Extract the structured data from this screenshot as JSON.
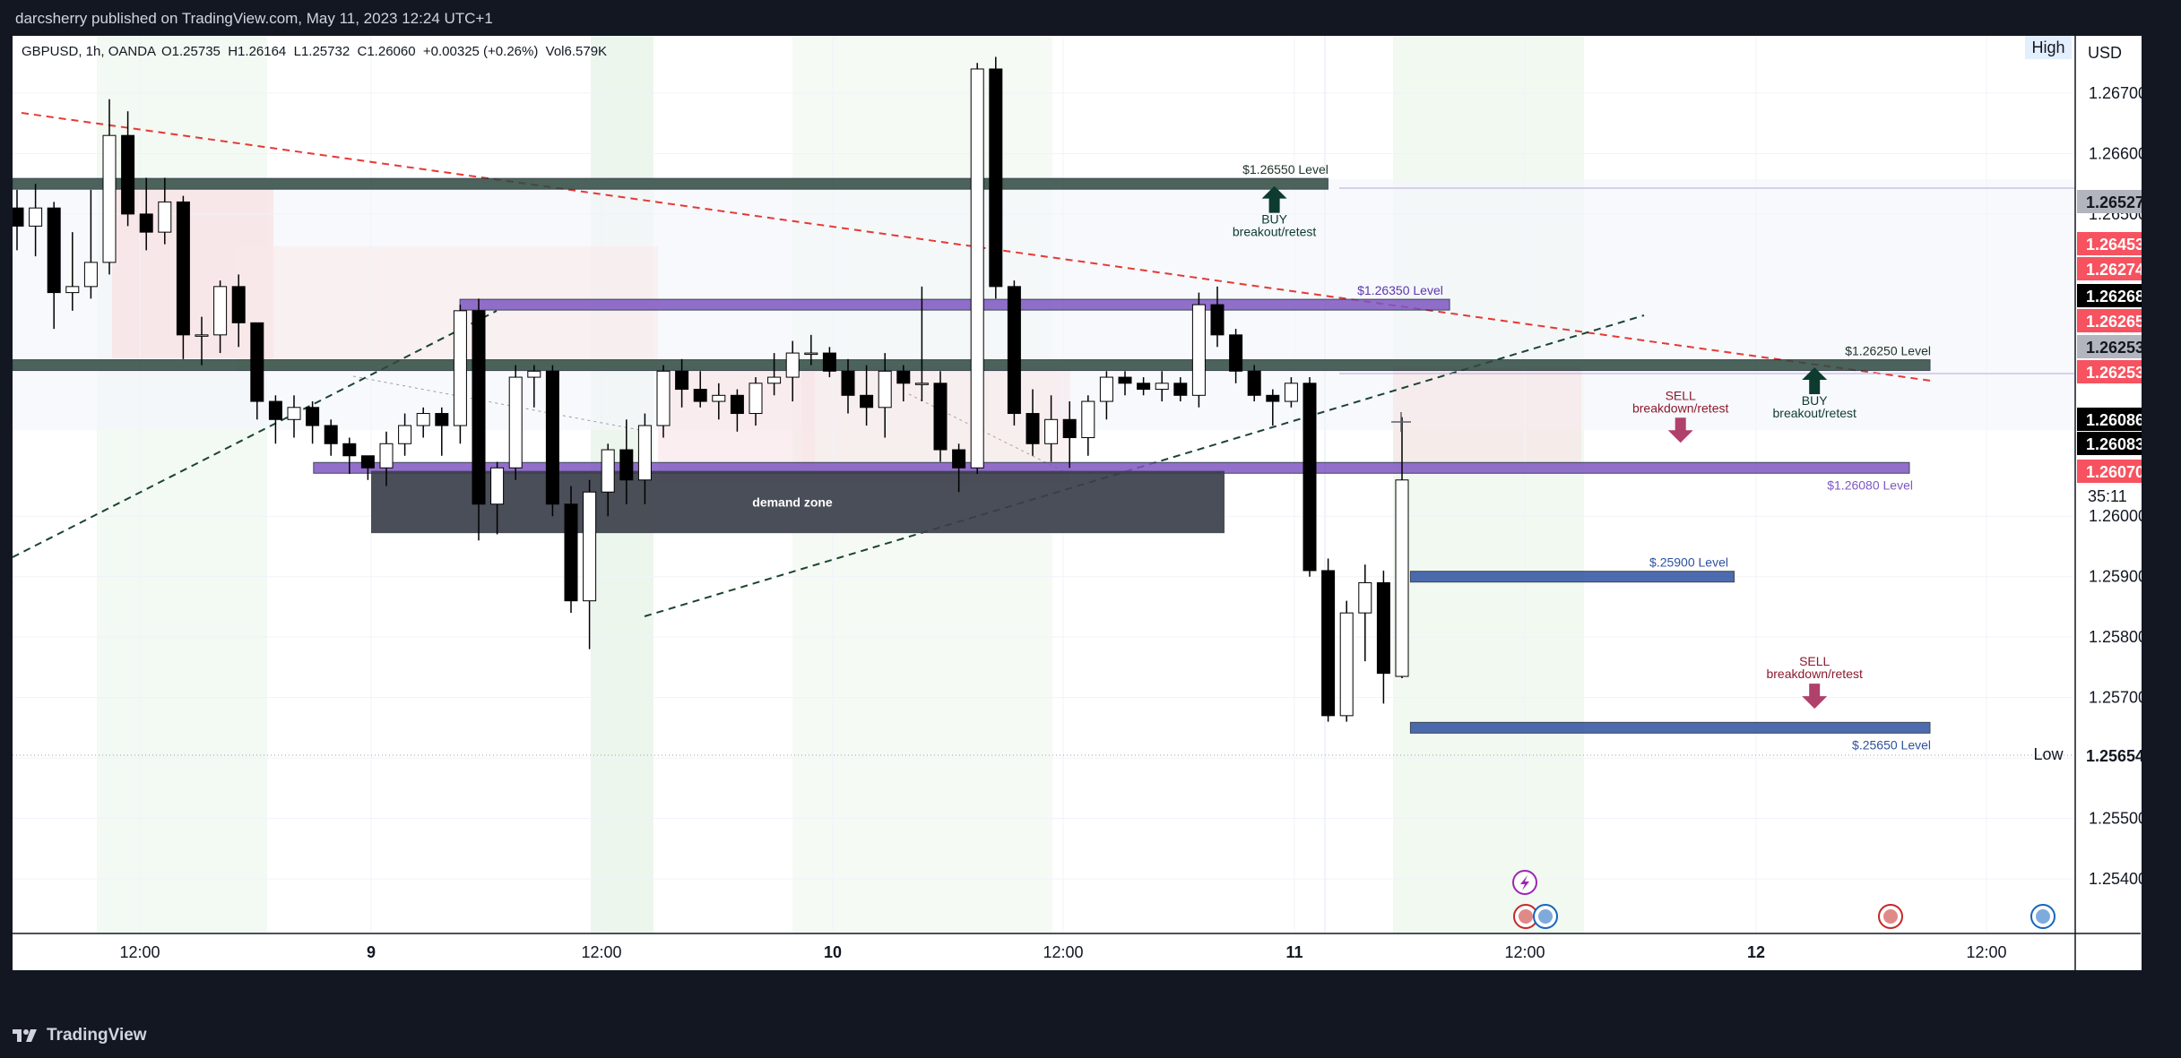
{
  "header": {
    "published_text": "darcsherry published on TradingView.com, May 11, 2023 12:24 UTC+1"
  },
  "footer": {
    "brand_label": "TradingView"
  },
  "legend": {
    "symbol_info": "GBPUSD, 1h, OANDA",
    "ohlc": "O1.25735  H1.26164  L1.25732  C1.26060  +0.00325 (+0.26%)  Vol6.579K"
  },
  "colors": {
    "up_candle": "#ffffff",
    "down_candle": "#000000",
    "level_green": "#2e4a3f",
    "level_purple": "#7e57c2",
    "level_blue": "#2e52a0",
    "trendline_red": "#e53935",
    "trendline_green": "#1b4332",
    "price_red": "#f7525f",
    "price_grey": "#b2b5be"
  },
  "chart_data": {
    "type": "candlestick",
    "symbol": "GBPUSD",
    "timeframe": "1h",
    "currency": "USD",
    "ylim": [
      1.2532,
      1.2678
    ],
    "y_ticks": [
      "1.26700",
      "1.26600",
      "1.26500",
      "1.26000",
      "1.25900",
      "1.25800",
      "1.25700",
      "1.25600",
      "1.25500",
      "1.25400"
    ],
    "x_ticks": [
      "12:00",
      "9",
      "12:00",
      "10",
      "12:00",
      "11",
      "12:00",
      "12",
      "12:00"
    ],
    "candles": [
      {
        "o": 1.2651,
        "h": 1.2654,
        "l": 1.2644,
        "c": 1.2648
      },
      {
        "o": 1.2648,
        "h": 1.2655,
        "l": 1.2643,
        "c": 1.2651
      },
      {
        "o": 1.2651,
        "h": 1.2652,
        "l": 1.2631,
        "c": 1.2637
      },
      {
        "o": 1.2637,
        "h": 1.2647,
        "l": 1.2634,
        "c": 1.2638
      },
      {
        "o": 1.2638,
        "h": 1.2654,
        "l": 1.2636,
        "c": 1.2642
      },
      {
        "o": 1.2642,
        "h": 1.2669,
        "l": 1.264,
        "c": 1.2663
      },
      {
        "o": 1.2663,
        "h": 1.2667,
        "l": 1.2648,
        "c": 1.265
      },
      {
        "o": 1.265,
        "h": 1.2656,
        "l": 1.2644,
        "c": 1.2647
      },
      {
        "o": 1.2647,
        "h": 1.2656,
        "l": 1.2645,
        "c": 1.2652
      },
      {
        "o": 1.2652,
        "h": 1.2653,
        "l": 1.2626,
        "c": 1.263
      },
      {
        "o": 1.263,
        "h": 1.2633,
        "l": 1.2625,
        "c": 1.263
      },
      {
        "o": 1.263,
        "h": 1.2639,
        "l": 1.2627,
        "c": 1.2638
      },
      {
        "o": 1.2638,
        "h": 1.264,
        "l": 1.2628,
        "c": 1.2632
      },
      {
        "o": 1.2632,
        "h": 1.2632,
        "l": 1.2616,
        "c": 1.2619
      },
      {
        "o": 1.2619,
        "h": 1.262,
        "l": 1.2612,
        "c": 1.2616
      },
      {
        "o": 1.2616,
        "h": 1.262,
        "l": 1.2613,
        "c": 1.2618
      },
      {
        "o": 1.2618,
        "h": 1.2619,
        "l": 1.2612,
        "c": 1.2615
      },
      {
        "o": 1.2615,
        "h": 1.2616,
        "l": 1.261,
        "c": 1.2612
      },
      {
        "o": 1.2612,
        "h": 1.2613,
        "l": 1.2607,
        "c": 1.261
      },
      {
        "o": 1.261,
        "h": 1.261,
        "l": 1.2606,
        "c": 1.2608
      },
      {
        "o": 1.2608,
        "h": 1.2614,
        "l": 1.2605,
        "c": 1.2612
      },
      {
        "o": 1.2612,
        "h": 1.2617,
        "l": 1.261,
        "c": 1.2615
      },
      {
        "o": 1.2615,
        "h": 1.2618,
        "l": 1.2613,
        "c": 1.2617
      },
      {
        "o": 1.2617,
        "h": 1.2618,
        "l": 1.261,
        "c": 1.2615
      },
      {
        "o": 1.2615,
        "h": 1.2635,
        "l": 1.2612,
        "c": 1.2634
      },
      {
        "o": 1.2634,
        "h": 1.2636,
        "l": 1.2596,
        "c": 1.2602
      },
      {
        "o": 1.2602,
        "h": 1.2609,
        "l": 1.2597,
        "c": 1.2608
      },
      {
        "o": 1.2608,
        "h": 1.2625,
        "l": 1.2606,
        "c": 1.2623
      },
      {
        "o": 1.2623,
        "h": 1.2625,
        "l": 1.2618,
        "c": 1.2624
      },
      {
        "o": 1.2624,
        "h": 1.2625,
        "l": 1.26,
        "c": 1.2602
      },
      {
        "o": 1.2602,
        "h": 1.2605,
        "l": 1.2584,
        "c": 1.2586
      },
      {
        "o": 1.2586,
        "h": 1.2606,
        "l": 1.2578,
        "c": 1.2604
      },
      {
        "o": 1.2604,
        "h": 1.2612,
        "l": 1.26,
        "c": 1.2611
      },
      {
        "o": 1.2611,
        "h": 1.2616,
        "l": 1.2602,
        "c": 1.2606
      },
      {
        "o": 1.2606,
        "h": 1.2617,
        "l": 1.2602,
        "c": 1.2615
      },
      {
        "o": 1.2615,
        "h": 1.2625,
        "l": 1.2613,
        "c": 1.2624
      },
      {
        "o": 1.2624,
        "h": 1.2626,
        "l": 1.2618,
        "c": 1.2621
      },
      {
        "o": 1.2621,
        "h": 1.2624,
        "l": 1.2618,
        "c": 1.2619
      },
      {
        "o": 1.2619,
        "h": 1.2622,
        "l": 1.2616,
        "c": 1.262
      },
      {
        "o": 1.262,
        "h": 1.2621,
        "l": 1.2614,
        "c": 1.2617
      },
      {
        "o": 1.2617,
        "h": 1.2623,
        "l": 1.2615,
        "c": 1.2622
      },
      {
        "o": 1.2622,
        "h": 1.2627,
        "l": 1.262,
        "c": 1.2623
      },
      {
        "o": 1.2623,
        "h": 1.2629,
        "l": 1.2619,
        "c": 1.2627
      },
      {
        "o": 1.2627,
        "h": 1.263,
        "l": 1.2625,
        "c": 1.2627
      },
      {
        "o": 1.2627,
        "h": 1.2628,
        "l": 1.2623,
        "c": 1.2624
      },
      {
        "o": 1.2624,
        "h": 1.2626,
        "l": 1.2617,
        "c": 1.262
      },
      {
        "o": 1.262,
        "h": 1.2625,
        "l": 1.2615,
        "c": 1.2618
      },
      {
        "o": 1.2618,
        "h": 1.2627,
        "l": 1.2613,
        "c": 1.2624
      },
      {
        "o": 1.2624,
        "h": 1.2625,
        "l": 1.2619,
        "c": 1.2622
      },
      {
        "o": 1.2622,
        "h": 1.2638,
        "l": 1.2619,
        "c": 1.2622
      },
      {
        "o": 1.2622,
        "h": 1.2624,
        "l": 1.2609,
        "c": 1.2611
      },
      {
        "o": 1.2611,
        "h": 1.2612,
        "l": 1.2604,
        "c": 1.2608
      },
      {
        "o": 1.2608,
        "h": 1.2675,
        "l": 1.2607,
        "c": 1.2674
      },
      {
        "o": 1.2674,
        "h": 1.2676,
        "l": 1.2636,
        "c": 1.2638
      },
      {
        "o": 1.2638,
        "h": 1.2639,
        "l": 1.2615,
        "c": 1.2617
      },
      {
        "o": 1.2617,
        "h": 1.2621,
        "l": 1.261,
        "c": 1.2612
      },
      {
        "o": 1.2612,
        "h": 1.262,
        "l": 1.2609,
        "c": 1.2616
      },
      {
        "o": 1.2616,
        "h": 1.2619,
        "l": 1.2608,
        "c": 1.2613
      },
      {
        "o": 1.2613,
        "h": 1.262,
        "l": 1.261,
        "c": 1.2619
      },
      {
        "o": 1.2619,
        "h": 1.2624,
        "l": 1.2616,
        "c": 1.2623
      },
      {
        "o": 1.2623,
        "h": 1.2624,
        "l": 1.262,
        "c": 1.2622
      },
      {
        "o": 1.2622,
        "h": 1.2623,
        "l": 1.262,
        "c": 1.2621
      },
      {
        "o": 1.2621,
        "h": 1.2624,
        "l": 1.2619,
        "c": 1.2622
      },
      {
        "o": 1.2622,
        "h": 1.2623,
        "l": 1.2619,
        "c": 1.262
      },
      {
        "o": 1.262,
        "h": 1.2637,
        "l": 1.2618,
        "c": 1.2635
      },
      {
        "o": 1.2635,
        "h": 1.2638,
        "l": 1.2628,
        "c": 1.263
      },
      {
        "o": 1.263,
        "h": 1.2631,
        "l": 1.2622,
        "c": 1.2624
      },
      {
        "o": 1.2624,
        "h": 1.2625,
        "l": 1.2619,
        "c": 1.262
      },
      {
        "o": 1.262,
        "h": 1.2621,
        "l": 1.2615,
        "c": 1.2619
      },
      {
        "o": 1.2619,
        "h": 1.2623,
        "l": 1.2618,
        "c": 1.2622
      },
      {
        "o": 1.2622,
        "h": 1.2623,
        "l": 1.259,
        "c": 1.2591
      },
      {
        "o": 1.2591,
        "h": 1.2593,
        "l": 1.2566,
        "c": 1.2567
      },
      {
        "o": 1.2567,
        "h": 1.2586,
        "l": 1.2566,
        "c": 1.2584
      },
      {
        "o": 1.2584,
        "h": 1.2592,
        "l": 1.2576,
        "c": 1.2589
      },
      {
        "o": 1.2589,
        "h": 1.2591,
        "l": 1.2569,
        "c": 1.2574
      },
      {
        "o": 1.25735,
        "h": 1.26164,
        "l": 1.25732,
        "c": 1.2606
      }
    ],
    "levels": [
      {
        "label": "$1.26550 Level",
        "price": 1.2655,
        "x0": 0.0,
        "x1": 0.638,
        "color": "#2e4a3f",
        "label_pos": 0.6
      },
      {
        "label": "$1.26350 Level",
        "price": 1.2635,
        "x0": 0.217,
        "x1": 0.697,
        "color": "#7e57c2",
        "label_pos": 0.67
      },
      {
        "label": "$1.26250 Level",
        "price": 1.2625,
        "x0": 0.0,
        "x1": 0.93,
        "color": "#2e4a3f",
        "label_pos": 0.9
      },
      {
        "label": "$1.26080 Level",
        "price": 1.2608,
        "x0": 0.146,
        "x1": 0.92,
        "color": "#7e57c2",
        "label_pos": 0.9
      },
      {
        "label": "$.25900 Level",
        "price": 1.259,
        "x0": 0.678,
        "x1": 0.835,
        "color": "#2e52a0",
        "label_pos": 0.8
      },
      {
        "label": "$.25650 Level",
        "price": 1.2565,
        "x0": 0.678,
        "x1": 0.93,
        "color": "#2e52a0",
        "label_pos": 0.9
      }
    ],
    "demand_zone": {
      "label": "demand zone",
      "top": 1.26075,
      "bottom": 1.25972
    },
    "annotations": [
      {
        "lines": [
          "BUY",
          "breakout/retest"
        ],
        "price": 1.2649,
        "x": 0.612,
        "dir": "up",
        "color": "#0d3b2e"
      },
      {
        "lines": [
          "BUY",
          "breakout/retest"
        ],
        "price": 1.2619,
        "x": 0.874,
        "dir": "up",
        "color": "#0d3b2e"
      },
      {
        "lines": [
          "SELL",
          "breakdown/retest"
        ],
        "price": 1.2616,
        "x": 0.809,
        "dir": "down",
        "color": "#8b1a2e"
      },
      {
        "lines": [
          "SELL",
          "breakdown/retest"
        ],
        "price": 1.2572,
        "x": 0.874,
        "dir": "down",
        "color": "#8b1a2e"
      }
    ],
    "price_tags": [
      {
        "text": "1.26527",
        "price": 1.26527,
        "bg": "#b2b5be",
        "fg": "#131722"
      },
      {
        "text": "1.26453",
        "price": 1.26453,
        "bg": "#f7525f",
        "fg": "#ffffff"
      },
      {
        "text": "1.26274",
        "price": 1.26274,
        "bg": "#f7525f",
        "fg": "#ffffff"
      },
      {
        "text": "1.26268",
        "price": 1.26268,
        "bg": "#000000",
        "fg": "#ffffff"
      },
      {
        "text": "1.26265",
        "price": 1.26265,
        "bg": "#f7525f",
        "fg": "#ffffff"
      },
      {
        "text": "1.26253",
        "price": 1.26253,
        "bg": "#b2b5be",
        "fg": "#131722"
      },
      {
        "text": "1.26253",
        "price": 1.26253,
        "bg": "#f7525f",
        "fg": "#ffffff"
      },
      {
        "text": "1.26086",
        "price": 1.26086,
        "bg": "#000000",
        "fg": "#ffffff"
      },
      {
        "text": "1.26083",
        "price": 1.26083,
        "bg": "#000000",
        "fg": "#ffffff"
      },
      {
        "text": "1.26070",
        "price": 1.2607,
        "bg": "#f7525f",
        "fg": "#ffffff"
      },
      {
        "text": "1.25654",
        "price": 1.25654,
        "bg": "#ffffff",
        "fg": "#131722"
      }
    ],
    "countdown": "35:11",
    "high_label": "High",
    "low_label": "Low",
    "currency_label": "USD",
    "low_price": 1.25654
  }
}
